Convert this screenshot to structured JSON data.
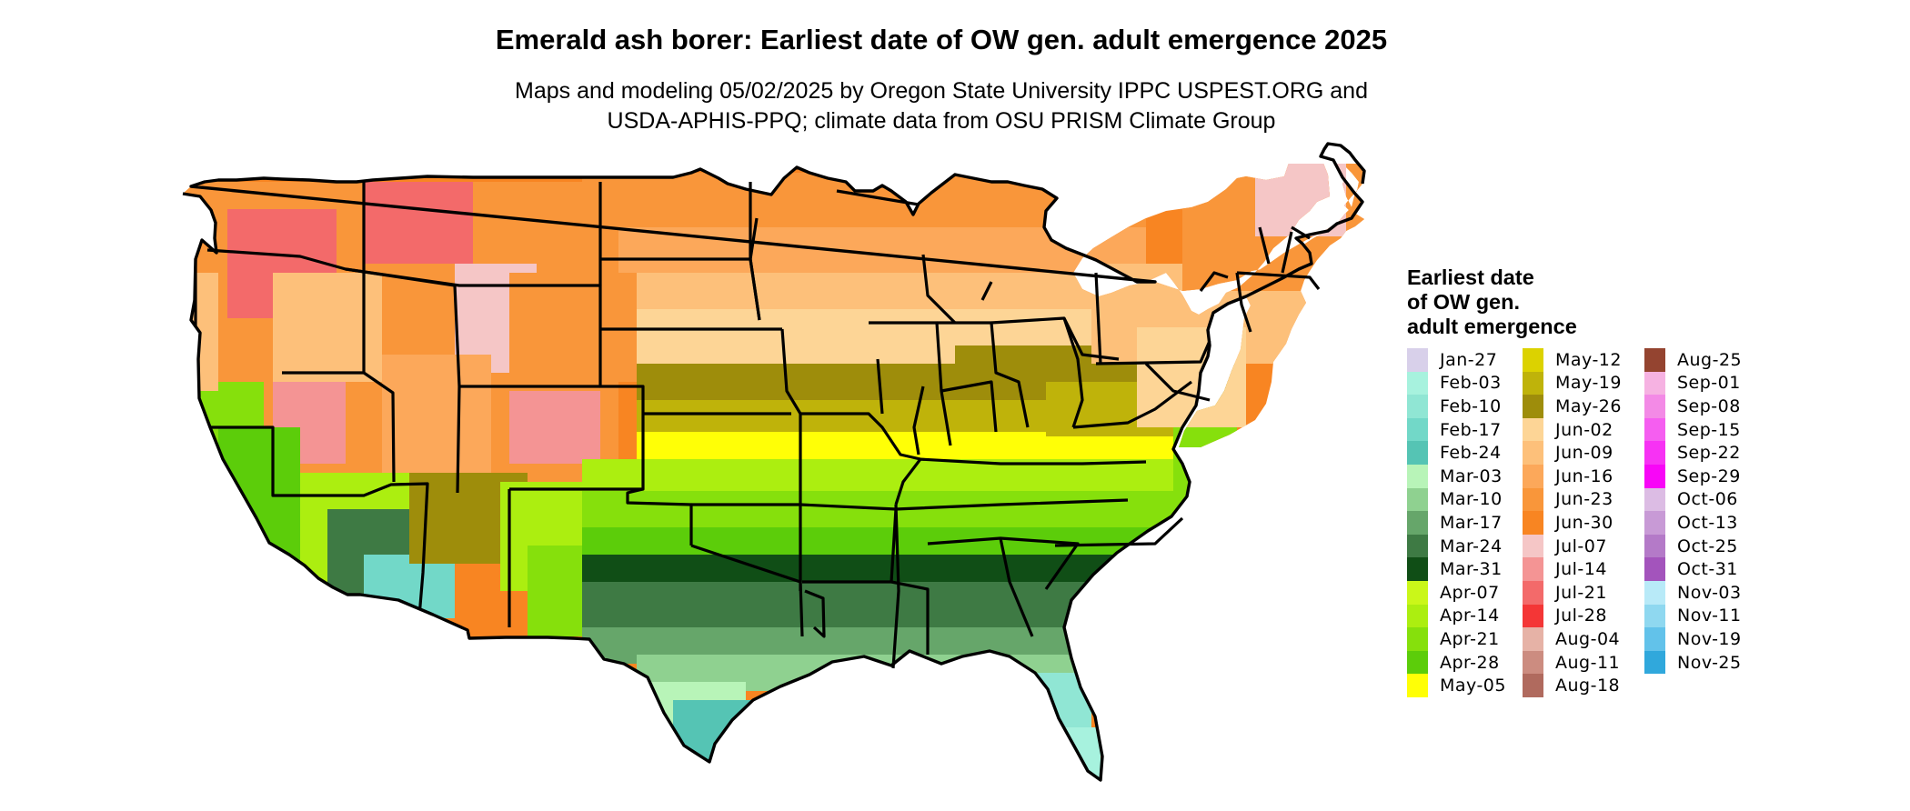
{
  "title": "Emerald ash borer: Earliest date of OW gen. adult emergence 2025",
  "subtitle_lines": [
    "Maps and modeling 05/02/2025 by Oregon State University IPPC USPEST.ORG and",
    "USDA-APHIS-PPQ; climate data from OSU PRISM Climate Group"
  ],
  "legend": {
    "title_lines": [
      "Earliest date",
      "of OW gen.",
      "adult emergence"
    ],
    "columns": [
      [
        {
          "label": "Jan-27",
          "color": "#d8d0ea"
        },
        {
          "label": "Feb-03",
          "color": "#a7f2de"
        },
        {
          "label": "Feb-10",
          "color": "#90e6d4"
        },
        {
          "label": "Feb-17",
          "color": "#72d8c8"
        },
        {
          "label": "Feb-24",
          "color": "#55c4b4"
        },
        {
          "label": "Mar-03",
          "color": "#b8f4b8"
        },
        {
          "label": "Mar-10",
          "color": "#8fd190"
        },
        {
          "label": "Mar-17",
          "color": "#66a66a"
        },
        {
          "label": "Mar-24",
          "color": "#3e7a44"
        },
        {
          "label": "Mar-31",
          "color": "#104e16"
        },
        {
          "label": "Apr-07",
          "color": "#caf719"
        },
        {
          "label": "Apr-14",
          "color": "#acee10"
        },
        {
          "label": "Apr-21",
          "color": "#86e00c"
        },
        {
          "label": "Apr-28",
          "color": "#5ccd0a"
        },
        {
          "label": "May-05",
          "color": "#ffff06"
        }
      ],
      [
        {
          "label": "May-12",
          "color": "#dcd200"
        },
        {
          "label": "May-19",
          "color": "#bfb30a"
        },
        {
          "label": "May-26",
          "color": "#9e8d0b"
        },
        {
          "label": "Jun-02",
          "color": "#fdd596"
        },
        {
          "label": "Jun-09",
          "color": "#fdc07a"
        },
        {
          "label": "Jun-16",
          "color": "#fca85a"
        },
        {
          "label": "Jun-23",
          "color": "#f9963a"
        },
        {
          "label": "Jun-30",
          "color": "#f88522"
        },
        {
          "label": "Jul-07",
          "color": "#f5c6c6"
        },
        {
          "label": "Jul-14",
          "color": "#f49494"
        },
        {
          "label": "Jul-21",
          "color": "#f36a6a"
        },
        {
          "label": "Jul-28",
          "color": "#f43636"
        },
        {
          "label": "Aug-04",
          "color": "#e6b2a6"
        },
        {
          "label": "Aug-11",
          "color": "#cc8c80"
        },
        {
          "label": "Aug-18",
          "color": "#b06a5e"
        }
      ],
      [
        {
          "label": "Aug-25",
          "color": "#944430"
        },
        {
          "label": "Sep-01",
          "color": "#f6b2e2"
        },
        {
          "label": "Sep-08",
          "color": "#f38ae6"
        },
        {
          "label": "Sep-15",
          "color": "#f55ef0"
        },
        {
          "label": "Sep-22",
          "color": "#f732f4"
        },
        {
          "label": "Sep-29",
          "color": "#f806f7"
        },
        {
          "label": "Oct-06",
          "color": "#dcbce4"
        },
        {
          "label": "Oct-13",
          "color": "#c89ad6"
        },
        {
          "label": "Oct-25",
          "color": "#b47ac8"
        },
        {
          "label": "Oct-31",
          "color": "#a354bc"
        },
        {
          "label": "Nov-03",
          "color": "#b8eaf8"
        },
        {
          "label": "Nov-11",
          "color": "#8fd8f0"
        },
        {
          "label": "Nov-19",
          "color": "#62c2ea"
        },
        {
          "label": "Nov-25",
          "color": "#30a8dc"
        }
      ]
    ]
  }
}
